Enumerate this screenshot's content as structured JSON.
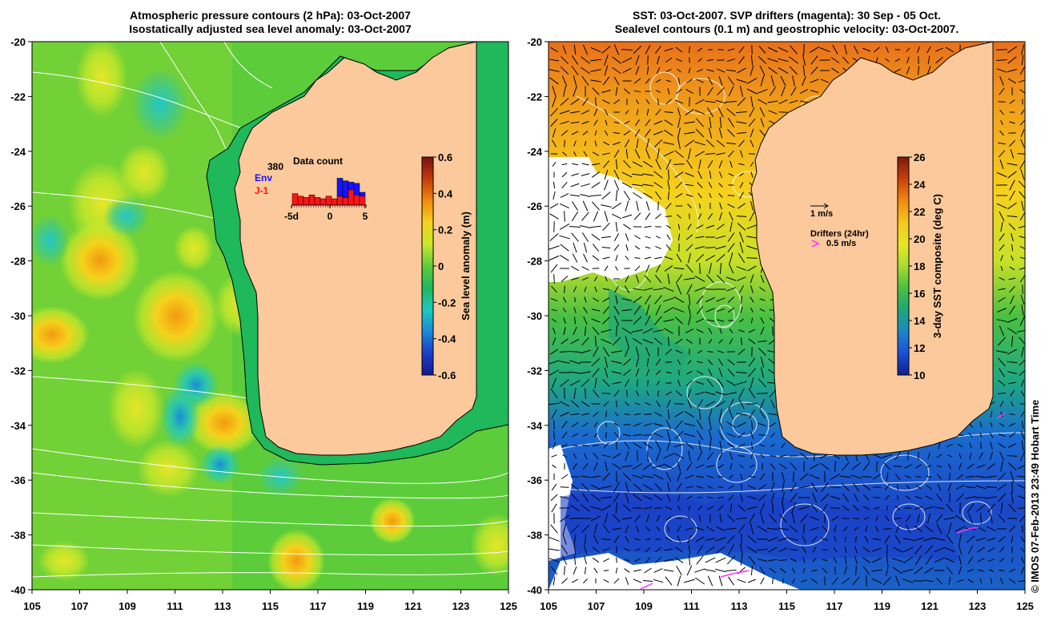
{
  "left_panel": {
    "title_line1": "Atmospheric pressure contours (2 hPa): 03-Oct-2007",
    "title_line2": "Isostatically adjusted sea level anomaly: 03-Oct-2007",
    "colorbar": {
      "label": "Sea level anomaly (m)",
      "ticks": [
        "0.6",
        "0.4",
        "0.2",
        "0",
        "-0.2",
        "-0.4",
        "-0.6"
      ],
      "colors": [
        "#7a0f0f",
        "#c43a0c",
        "#f08a0c",
        "#f5d21c",
        "#c8e82a",
        "#5ccc3a",
        "#1fb85a",
        "#1ec8c0",
        "#1a8ad8",
        "#1a3ec8",
        "#101a90"
      ]
    },
    "data_count": {
      "title": "Data count",
      "count": "380",
      "env_label": "Env",
      "j1_label": "J-1",
      "xticks": [
        "-5d",
        "0",
        "5"
      ],
      "env_values": [
        0,
        0,
        0,
        0,
        0,
        0,
        0,
        0,
        14,
        13,
        6,
        9,
        3
      ],
      "j1_values": [
        9,
        7,
        6,
        8,
        6,
        5,
        7,
        5,
        7,
        6,
        12,
        8,
        7
      ],
      "env_color": "#1414ff",
      "j1_color": "#ff1414"
    }
  },
  "right_panel": {
    "title_line1": "SST: 03-Oct-2007. SVP drifters (magenta): 30 Sep - 05 Oct.",
    "title_line2": "Sealevel contours (0.1 m) and geostrophic velocity: 03-Oct-2007.",
    "colorbar": {
      "label": "3-day SST composite (deg C)",
      "ticks": [
        "26",
        "24",
        "22",
        "20",
        "18",
        "16",
        "14",
        "12",
        "10"
      ],
      "colors": [
        "#7a1a0a",
        "#c8400c",
        "#f08a10",
        "#f5c81c",
        "#e8e628",
        "#a8dc2e",
        "#4ac042",
        "#1ea878",
        "#1a88c8",
        "#1a50d8",
        "#10208a"
      ]
    },
    "legend": {
      "velocity_label": "1 m/s",
      "drifters_label": "Drifters (24hr)",
      "drifter_speed_label": "0.5 m/s",
      "drifter_color": "#ff30ff"
    }
  },
  "axes": {
    "lat_ticks": [
      "-20",
      "-22",
      "-24",
      "-26",
      "-28",
      "-30",
      "-32",
      "-34",
      "-36",
      "-38",
      "-40"
    ],
    "lon_ticks": [
      "105",
      "107",
      "109",
      "111",
      "113",
      "115",
      "117",
      "119",
      "121",
      "123",
      "125"
    ]
  },
  "colors": {
    "land": "#fbc99b",
    "coast": "#000000",
    "contour": "#ffffff"
  },
  "footer": {
    "credit": "© IMOS 07-Feb-2013 23:49 Hobart Time"
  }
}
